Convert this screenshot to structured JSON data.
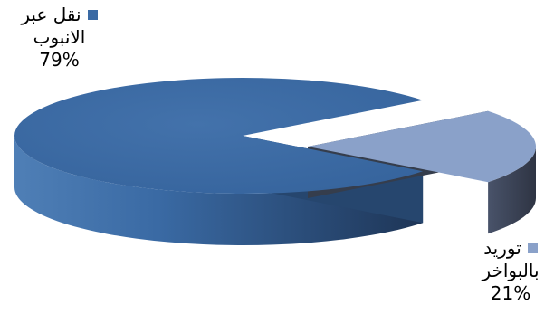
{
  "chart_data": {
    "type": "pie",
    "style": "3d-exploded",
    "slices": [
      {
        "label_lines": [
          "نقل عبر",
          "الانبوب"
        ],
        "value": 79,
        "percent_label": "79%",
        "color": "#3a6aa4",
        "side_color": "#26466e"
      },
      {
        "label_lines": [
          "توريد",
          "بالبواخر"
        ],
        "value": 21,
        "percent_label": "21%",
        "color": "#8aa1c9",
        "side_color": "#353d4c"
      }
    ],
    "legend": "inline-labels-with-swatches"
  }
}
